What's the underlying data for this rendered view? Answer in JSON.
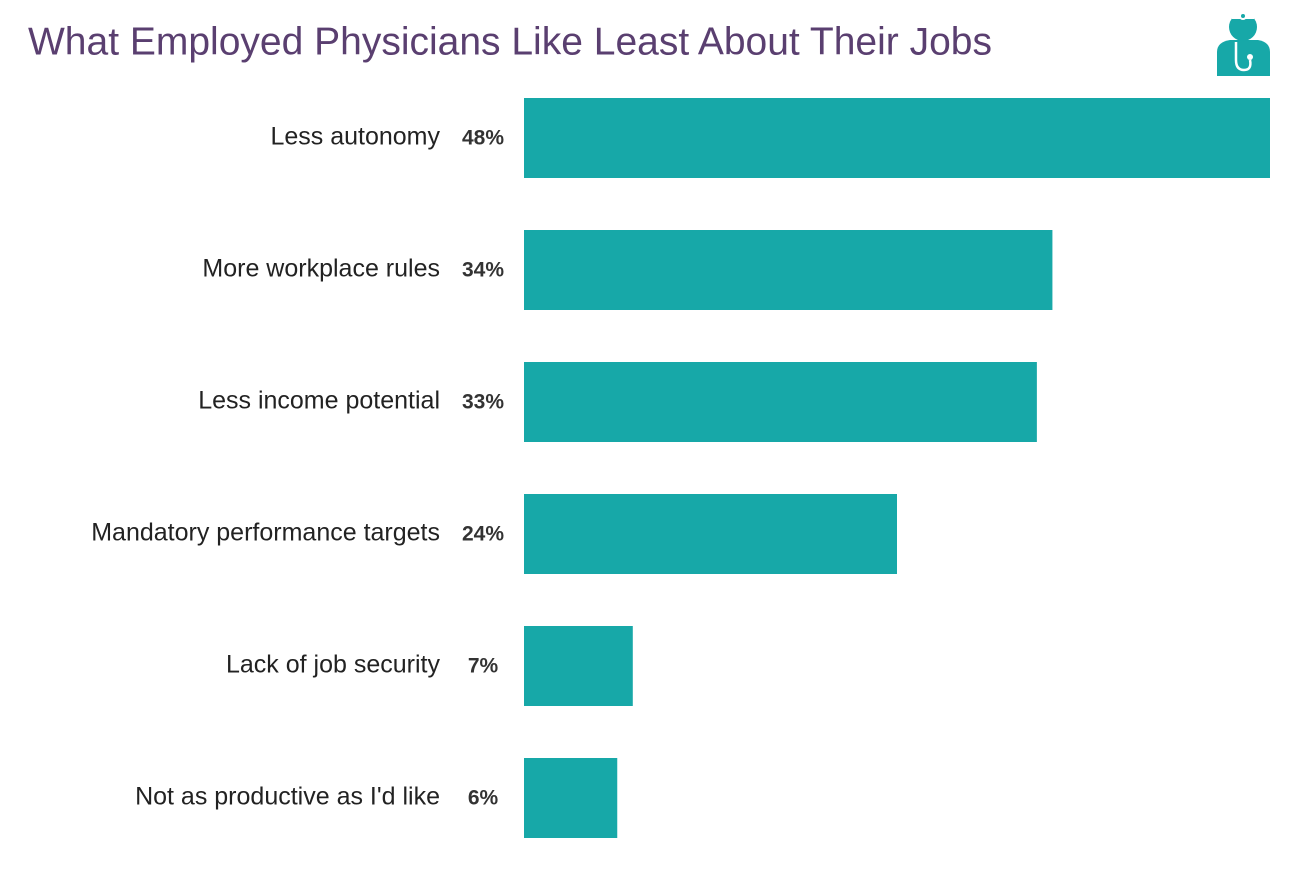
{
  "chart_data": {
    "type": "bar",
    "orientation": "horizontal",
    "title": "What Employed Physicians Like Least About Their Jobs",
    "categories": [
      "Less autonomy",
      "More workplace rules",
      "Less income potential",
      "Mandatory performance targets",
      "Lack of job security",
      "Not as productive as I'd like"
    ],
    "values": [
      48,
      34,
      33,
      24,
      7,
      6
    ],
    "value_labels": [
      "48%",
      "34%",
      "33%",
      "24%",
      "7%",
      "6%"
    ],
    "color": "#17a8a8"
  }
}
